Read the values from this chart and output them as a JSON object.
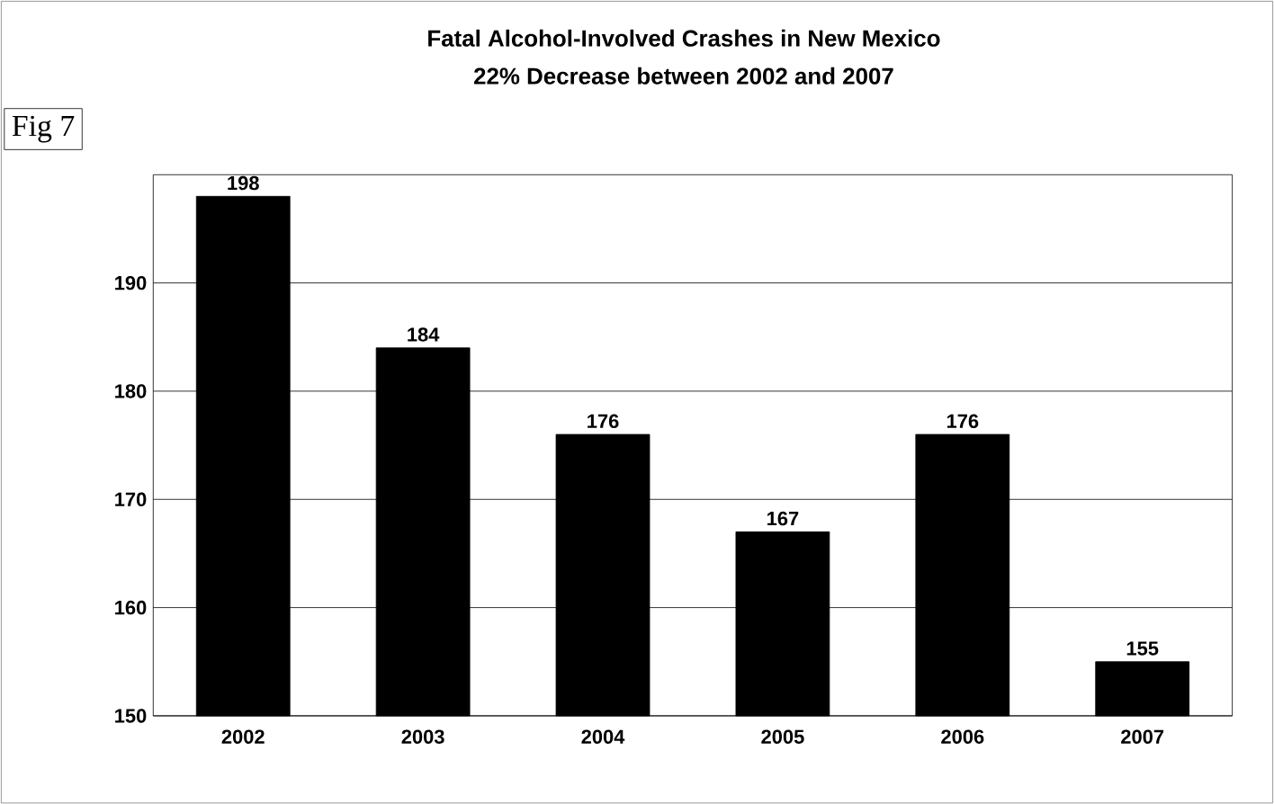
{
  "chart_data": {
    "type": "bar",
    "title": "Fatal Alcohol-Involved Crashes in New Mexico",
    "subtitle": "22% Decrease between 2002  and 2007",
    "categories": [
      "2002",
      "2003",
      "2004",
      "2005",
      "2006",
      "2007"
    ],
    "values": [
      198,
      184,
      176,
      167,
      176,
      155
    ],
    "color": "#000000",
    "data_labels": true,
    "ylim": [
      150,
      200
    ],
    "yticks": [
      150,
      160,
      170,
      180,
      190
    ],
    "grid": "y",
    "annotations": [
      "Fig 7"
    ]
  }
}
